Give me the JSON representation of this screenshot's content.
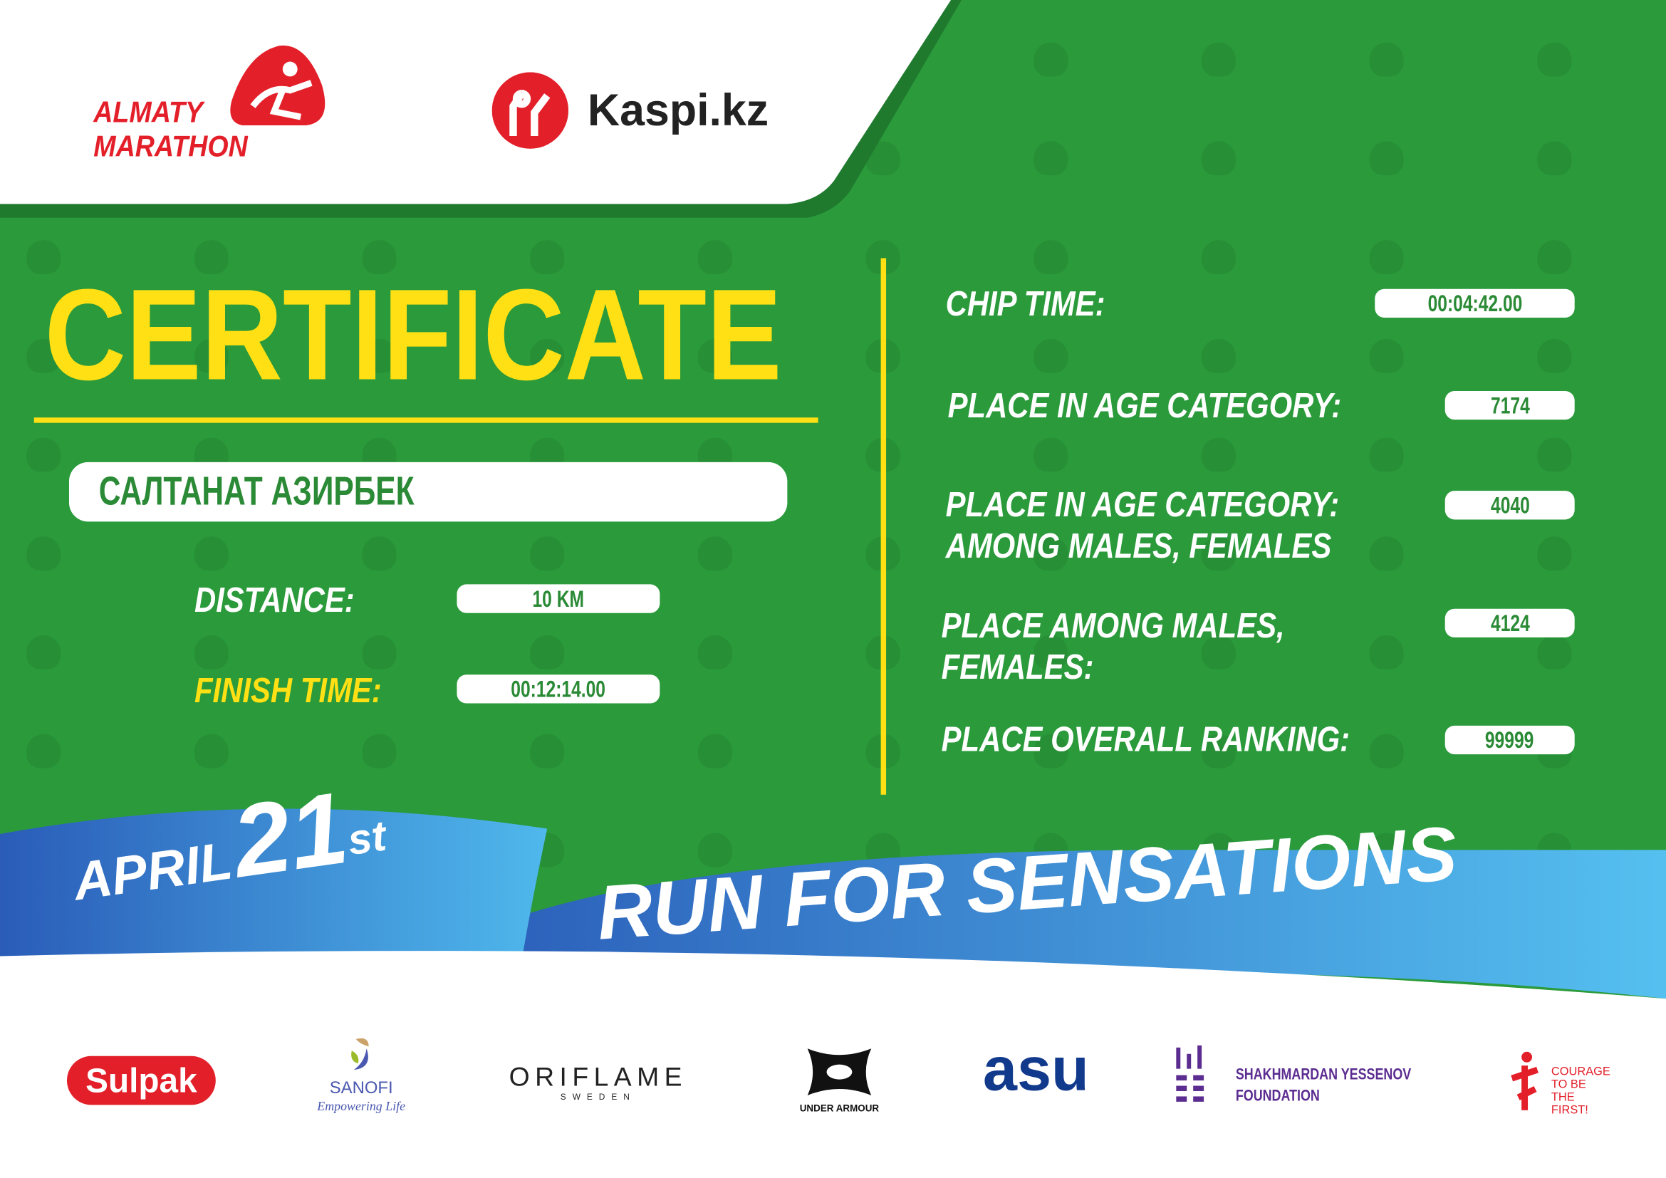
{
  "header": {
    "logo_almaty": "ALMATY MARATHON",
    "logo_kaspi": "Kaspi.kz"
  },
  "certificate": {
    "title": "CERTIFICATE",
    "name": "САЛТАНАТ АЗИРБЕК",
    "distance_label": "DISTANCE:",
    "distance_value": "10 KM",
    "finish_label": "FINISH TIME:",
    "finish_value": "00:12:14.00"
  },
  "results": {
    "chip_label": "CHIP TIME:",
    "chip_value": "00:04:42.00",
    "age_cat_label": "PLACE IN AGE CATEGORY:",
    "age_cat_value": "7174",
    "age_cat_gender_label_1": "PLACE IN AGE CATEGORY:",
    "age_cat_gender_label_2": "AMONG MALES, FEMALES",
    "age_cat_gender_value": "4040",
    "gender_label_1": "PLACE AMONG MALES,",
    "gender_label_2": "FEMALES:",
    "gender_value": "4124",
    "overall_label": "PLACE OVERALL RANKING:",
    "overall_value": "99999"
  },
  "ribbon": {
    "month": "APRIL",
    "day": "21",
    "suffix": "st",
    "slogan": "RUN FOR SENSATIONS"
  },
  "sponsors": {
    "sulpak": "Sulpak",
    "sanofi": "SANOFI",
    "sanofi_tag": "Empowering Life",
    "oriflame": "ORIFLAME",
    "oriflame_sub": "SWEDEN",
    "under_armour": "UNDER ARMOUR",
    "asu": "asu",
    "yessenov_1": "SHAKHMARDAN YESSENOV",
    "yessenov_2": "FOUNDATION",
    "courage_1": "COURAGE",
    "courage_2": "TO BE",
    "courage_3": "THE FIRST!"
  },
  "colors": {
    "green": "#2a9a3b",
    "yellow": "#ffe014",
    "red": "#e3202a",
    "blue": "#2f6fc4"
  }
}
